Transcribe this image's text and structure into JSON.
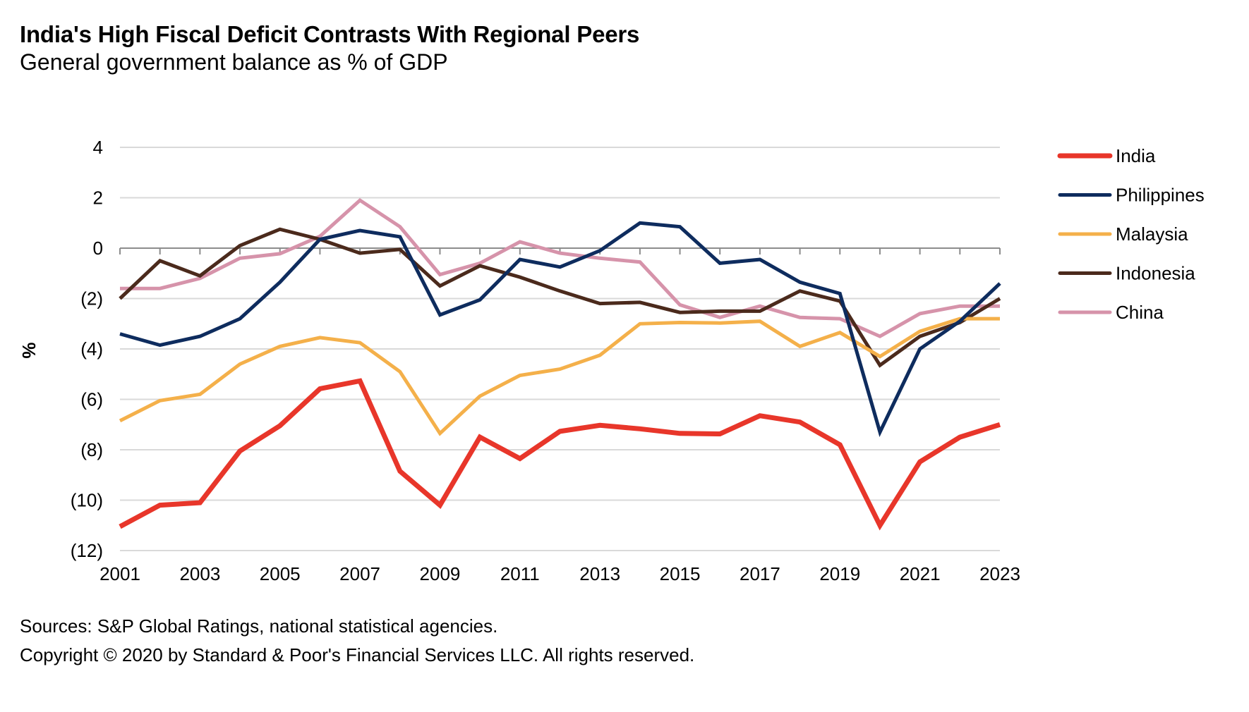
{
  "header": {
    "title": "India's High Fiscal Deficit Contrasts With Regional Peers",
    "subtitle": "General government balance as % of GDP"
  },
  "footer": {
    "sources": "Sources: S&P Global Ratings, national statistical agencies.",
    "copyright": "Copyright © 2020 by Standard & Poor's Financial Services LLC. All rights reserved."
  },
  "chart_data": {
    "type": "line",
    "title": "India's High Fiscal Deficit Contrasts With Regional Peers",
    "subtitle": "General government balance as % of GDP",
    "xlabel": "",
    "ylabel": "%",
    "x": [
      2001,
      2002,
      2003,
      2004,
      2005,
      2006,
      2007,
      2008,
      2009,
      2010,
      2011,
      2012,
      2013,
      2014,
      2015,
      2016,
      2017,
      2018,
      2019,
      2020,
      2021,
      2022,
      2023
    ],
    "x_tick_labels": [
      "2001",
      "2003",
      "2005",
      "2007",
      "2009",
      "2011",
      "2013",
      "2015",
      "2017",
      "2019",
      "2021",
      "2023"
    ],
    "ylim": [
      -12,
      4
    ],
    "y_ticks": [
      4,
      2,
      0,
      -2,
      -4,
      -6,
      -8,
      -10,
      -12
    ],
    "y_tick_labels": [
      "4",
      "2",
      "0",
      "(2)",
      "(4)",
      "(6)",
      "(8)",
      "(10)",
      "(12)"
    ],
    "grid": true,
    "legend_position": "right",
    "series": [
      {
        "name": "India",
        "color": "#e8362a",
        "values": [
          -11.05,
          -10.2,
          -10.1,
          -8.05,
          -7.05,
          -5.58,
          -5.27,
          -8.85,
          -10.2,
          -7.5,
          -8.35,
          -7.27,
          -7.03,
          -7.17,
          -7.35,
          -7.37,
          -6.65,
          -6.9,
          -7.8,
          -11.0,
          -8.48,
          -7.5,
          -7.0
        ]
      },
      {
        "name": "Philippines",
        "color": "#0e2c5e",
        "values": [
          -3.4,
          -3.85,
          -3.5,
          -2.8,
          -1.35,
          0.35,
          0.7,
          0.45,
          -2.65,
          -2.05,
          -0.45,
          -0.75,
          -0.1,
          1.0,
          0.85,
          -0.6,
          -0.45,
          -1.35,
          -1.8,
          -7.3,
          -4.0,
          -2.9,
          -1.4
        ]
      },
      {
        "name": "Malaysia",
        "color": "#f4b04a",
        "values": [
          -6.85,
          -6.05,
          -5.8,
          -4.6,
          -3.9,
          -3.55,
          -3.75,
          -4.9,
          -7.35,
          -5.87,
          -5.05,
          -4.8,
          -4.25,
          -3.0,
          -2.95,
          -2.97,
          -2.9,
          -3.9,
          -3.35,
          -4.3,
          -3.3,
          -2.8,
          -2.8
        ]
      },
      {
        "name": "Indonesia",
        "color": "#4b2a1c",
        "values": [
          -2.0,
          -0.5,
          -1.1,
          0.1,
          0.75,
          0.35,
          -0.2,
          -0.05,
          -1.5,
          -0.7,
          -1.15,
          -1.7,
          -2.2,
          -2.15,
          -2.55,
          -2.5,
          -2.5,
          -1.7,
          -2.1,
          -4.65,
          -3.5,
          -2.95,
          -2.0
        ]
      },
      {
        "name": "China",
        "color": "#d693aa",
        "values": [
          -1.6,
          -1.6,
          -1.2,
          -0.4,
          -0.22,
          0.47,
          1.9,
          0.85,
          -1.05,
          -0.6,
          0.25,
          -0.2,
          -0.4,
          -0.55,
          -2.25,
          -2.75,
          -2.3,
          -2.75,
          -2.8,
          -3.5,
          -2.6,
          -2.3,
          -2.3
        ]
      }
    ]
  },
  "style": {
    "gridline_color": "#d9d9d9",
    "axis_color": "#8c8c8c"
  }
}
